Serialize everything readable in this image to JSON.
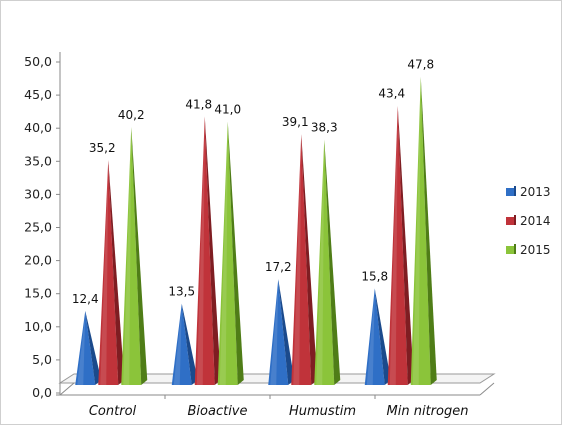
{
  "chart_data": {
    "type": "bar",
    "style": "3d-cone",
    "categories": [
      "Control",
      "Bioactive",
      "Humustim",
      "Min nitrogen"
    ],
    "series": [
      {
        "name": "2013",
        "color": "#2f6fc6",
        "dark": "#1b4a8c",
        "values": [
          12.4,
          13.5,
          17.2,
          15.8
        ],
        "labels": [
          "12,4",
          "13,5",
          "17,2",
          "15,8"
        ]
      },
      {
        "name": "2014",
        "color": "#c0333a",
        "dark": "#7f1d22",
        "values": [
          35.2,
          41.8,
          39.1,
          43.4
        ],
        "labels": [
          "35,2",
          "41,8",
          "39,1",
          "43,4"
        ]
      },
      {
        "name": "2015",
        "color": "#8bc43a",
        "dark": "#4f7d17",
        "values": [
          40.2,
          41.0,
          38.3,
          47.8
        ],
        "labels": [
          "40,2",
          "41,0",
          "38,3",
          "47,8"
        ]
      }
    ],
    "title": "",
    "xlabel": "",
    "ylabel": "",
    "ylim": [
      0,
      50
    ],
    "yticks": [
      "0,0",
      "5,0",
      "10,0",
      "15,0",
      "20,0",
      "25,0",
      "30,0",
      "35,0",
      "40,0",
      "45,0",
      "50,0"
    ],
    "grid": false,
    "legend": "right"
  }
}
